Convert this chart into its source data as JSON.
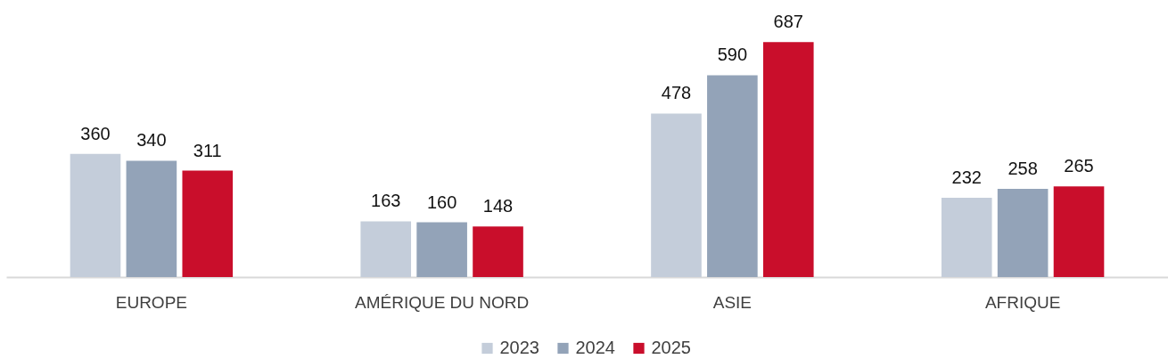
{
  "chart_data": {
    "type": "bar",
    "categories": [
      "EUROPE",
      "AMÉRIQUE DU NORD",
      "ASIE",
      "AFRIQUE"
    ],
    "series": [
      {
        "name": "2023",
        "color": "#c4cdda",
        "values": [
          360,
          163,
          478,
          232
        ]
      },
      {
        "name": "2024",
        "color": "#93a3b8",
        "values": [
          340,
          160,
          590,
          258
        ]
      },
      {
        "name": "2025",
        "color": "#c90e2b",
        "values": [
          311,
          148,
          687,
          265
        ]
      }
    ],
    "ylim": [
      0,
      810
    ],
    "data_labels": true,
    "legend": "bottom"
  }
}
